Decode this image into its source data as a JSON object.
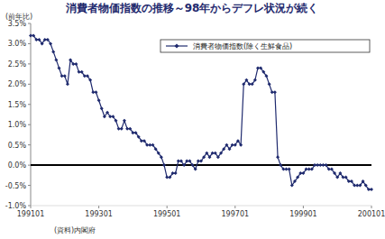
{
  "chart_data": {
    "type": "line",
    "title": "消費者物価指数の推移～98年からデフレ状況が続く",
    "y_label": "(前年比)",
    "source": "(資料)内閣府",
    "categories": [
      "199101",
      null,
      null,
      null,
      null,
      null,
      null,
      null,
      null,
      null,
      null,
      null,
      null,
      null,
      null,
      null,
      null,
      null,
      null,
      null,
      null,
      null,
      null,
      null,
      "199301",
      null,
      null,
      null,
      null,
      null,
      null,
      null,
      null,
      null,
      null,
      null,
      null,
      null,
      null,
      null,
      null,
      null,
      null,
      null,
      null,
      null,
      null,
      null,
      "199501",
      null,
      null,
      null,
      null,
      null,
      null,
      null,
      null,
      null,
      null,
      null,
      null,
      null,
      null,
      null,
      null,
      null,
      null,
      null,
      null,
      null,
      null,
      null,
      "199701",
      null,
      null,
      null,
      null,
      null,
      null,
      null,
      null,
      null,
      null,
      null,
      null,
      null,
      null,
      null,
      null,
      null,
      null,
      null,
      null,
      null,
      null,
      null,
      "199901",
      null,
      null,
      null,
      null,
      null,
      null,
      null,
      null,
      null,
      null,
      null,
      null,
      null,
      null,
      null,
      null,
      null,
      null,
      null,
      null,
      null,
      null,
      null,
      "200101"
    ],
    "series": [
      {
        "name": "消費者物価指数(除く生鮮食品)",
        "color": "#1f2a6e",
        "marker": "diamond",
        "values": [
          3.2,
          3.2,
          3.1,
          3.1,
          3.0,
          3.1,
          3.1,
          3.0,
          2.8,
          2.6,
          2.4,
          2.2,
          2.2,
          2.0,
          2.6,
          2.5,
          2.5,
          2.3,
          2.3,
          2.2,
          2.2,
          2.1,
          1.8,
          1.8,
          1.6,
          1.4,
          1.2,
          1.3,
          1.2,
          1.2,
          1.1,
          0.9,
          0.9,
          1.1,
          0.9,
          0.9,
          0.8,
          0.8,
          0.7,
          0.6,
          0.6,
          0.5,
          0.5,
          0.5,
          0.4,
          0.3,
          0.2,
          0.0,
          -0.3,
          -0.3,
          -0.2,
          -0.2,
          0.1,
          0.1,
          0.0,
          0.1,
          0.1,
          0.0,
          -0.1,
          0.1,
          0.1,
          0.2,
          0.3,
          0.2,
          0.3,
          0.3,
          0.2,
          0.3,
          0.4,
          0.5,
          0.4,
          0.5,
          0.5,
          0.6,
          0.5,
          2.0,
          2.1,
          2.0,
          2.0,
          2.1,
          2.4,
          2.4,
          2.3,
          2.2,
          2.0,
          1.8,
          1.8,
          0.2,
          0.0,
          -0.1,
          -0.1,
          -0.1,
          -0.5,
          -0.4,
          -0.3,
          -0.2,
          -0.2,
          -0.1,
          -0.1,
          -0.1,
          0.0,
          0.0,
          0.0,
          0.0,
          0.0,
          -0.1,
          -0.1,
          -0.2,
          -0.3,
          -0.2,
          -0.3,
          -0.3,
          -0.4,
          -0.4,
          -0.5,
          -0.5,
          -0.5,
          -0.4,
          -0.5,
          -0.6,
          -0.6
        ]
      }
    ],
    "ylim": [
      -1.0,
      3.5
    ],
    "yticks": [
      {
        "value": -1.0,
        "label": "-1.0%"
      },
      {
        "value": -0.5,
        "label": "-0.5%"
      },
      {
        "value": 0.0,
        "label": "0.0%"
      },
      {
        "value": 0.5,
        "label": "0.5%"
      },
      {
        "value": 1.0,
        "label": "1.0%"
      },
      {
        "value": 1.5,
        "label": "1.5%"
      },
      {
        "value": 2.0,
        "label": "2.0%"
      },
      {
        "value": 2.5,
        "label": "2.5%"
      },
      {
        "value": 3.0,
        "label": "3.0%"
      },
      {
        "value": 3.5,
        "label": "3.5%"
      }
    ],
    "grid": false,
    "legend": "top-right"
  }
}
